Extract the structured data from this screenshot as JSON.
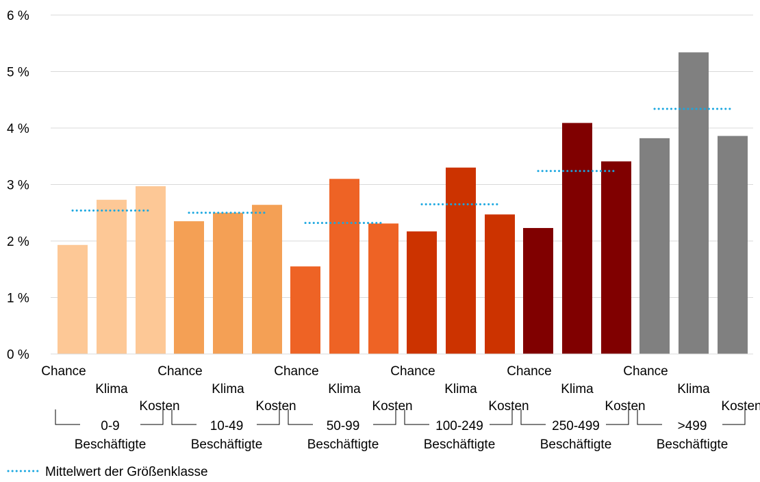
{
  "chart_data": {
    "type": "bar",
    "y_ticks": [
      "0 %",
      "1 %",
      "2 %",
      "3 %",
      "4 %",
      "5 %",
      "6 %"
    ],
    "ylim": [
      0,
      6
    ],
    "grid": true,
    "groups": [
      {
        "name_line1": "0-9",
        "name_line2": "Beschäftigte",
        "color": "#fdc896",
        "bars": [
          {
            "label": "Chance",
            "value": 1.93
          },
          {
            "label": "Klima",
            "value": 2.73
          },
          {
            "label": "Kosten",
            "value": 2.97
          }
        ],
        "mean": 2.54
      },
      {
        "name_line1": "10-49",
        "name_line2": "Beschäftigte",
        "color": "#f4a055",
        "bars": [
          {
            "label": "Chance",
            "value": 2.35
          },
          {
            "label": "Klima",
            "value": 2.5
          },
          {
            "label": "Kosten",
            "value": 2.64
          }
        ],
        "mean": 2.5
      },
      {
        "name_line1": "50-99",
        "name_line2": "Beschäftigte",
        "color": "#ee6325",
        "bars": [
          {
            "label": "Chance",
            "value": 1.55
          },
          {
            "label": "Klima",
            "value": 3.1
          },
          {
            "label": "Kosten",
            "value": 2.31
          }
        ],
        "mean": 2.32
      },
      {
        "name_line1": "100-249",
        "name_line2": "Beschäftigte",
        "color": "#cc3300",
        "bars": [
          {
            "label": "Chance",
            "value": 2.17
          },
          {
            "label": "Klima",
            "value": 3.3
          },
          {
            "label": "Kosten",
            "value": 2.47
          }
        ],
        "mean": 2.65
      },
      {
        "name_line1": "250-499",
        "name_line2": "Beschäftigte",
        "color": "#800000",
        "bars": [
          {
            "label": "Chance",
            "value": 2.23
          },
          {
            "label": "Klima",
            "value": 4.09
          },
          {
            "label": "Kosten",
            "value": 3.41
          }
        ],
        "mean": 3.24
      },
      {
        "name_line1": ">499",
        "name_line2": "Beschäftigte",
        "color": "#808080",
        "bars": [
          {
            "label": "Chance",
            "value": 3.82
          },
          {
            "label": "Klima",
            "value": 5.34
          },
          {
            "label": "Kosten",
            "value": 3.86
          }
        ],
        "mean": 4.34
      }
    ],
    "mean_line_color": "#1aa7e0",
    "legend": {
      "label": "Mittelwert der Größenklasse",
      "placement": "bottom-left"
    }
  }
}
